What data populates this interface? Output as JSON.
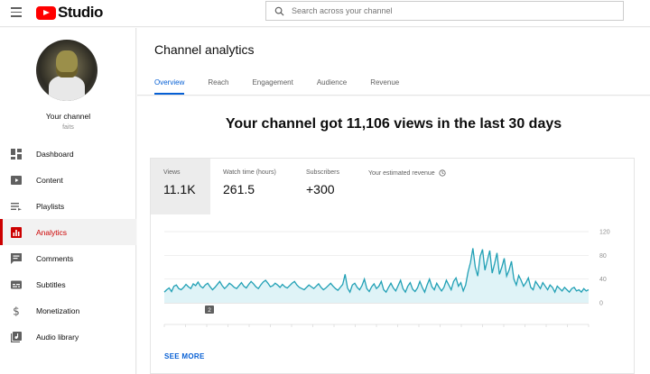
{
  "app": {
    "logo_text": "Studio",
    "colors": {
      "brand": "#ff0000",
      "accent": "#065fd4",
      "active_nav": "#cc0000"
    }
  },
  "search": {
    "placeholder": "Search across your channel"
  },
  "sidebar": {
    "channel_name": "Your channel",
    "channel_handle": "faits",
    "items": [
      {
        "label": "Dashboard",
        "icon": "dashboard-icon"
      },
      {
        "label": "Content",
        "icon": "content-icon"
      },
      {
        "label": "Playlists",
        "icon": "playlists-icon"
      },
      {
        "label": "Analytics",
        "icon": "analytics-icon",
        "active": true
      },
      {
        "label": "Comments",
        "icon": "comments-icon"
      },
      {
        "label": "Subtitles",
        "icon": "subtitles-icon"
      },
      {
        "label": "Monetization",
        "icon": "monetization-icon"
      },
      {
        "label": "Audio library",
        "icon": "audio-library-icon"
      }
    ]
  },
  "header": {
    "title": "Channel analytics",
    "tabs": [
      {
        "label": "Overview",
        "active": true
      },
      {
        "label": "Reach"
      },
      {
        "label": "Engagement"
      },
      {
        "label": "Audience"
      },
      {
        "label": "Revenue"
      }
    ]
  },
  "main": {
    "headline": "Your channel got 11,106 views in the last 30 days",
    "metrics": [
      {
        "label": "Views",
        "value": "11.1K",
        "selected": true
      },
      {
        "label": "Watch time (hours)",
        "value": "261.5"
      },
      {
        "label": "Subscribers",
        "value": "+300"
      },
      {
        "label": "Your estimated revenue",
        "value": "",
        "icon": "clock-icon"
      }
    ],
    "see_more": "SEE MORE",
    "marker_label": "2"
  },
  "chart_data": {
    "type": "area",
    "series": [
      {
        "values": [
          18,
          22,
          25,
          19,
          28,
          30,
          24,
          22,
          26,
          31,
          27,
          24,
          32,
          29,
          35,
          28,
          25,
          30,
          33,
          27,
          22,
          26,
          31,
          36,
          29,
          24,
          28,
          33,
          30,
          26,
          24,
          29,
          34,
          28,
          25,
          31,
          36,
          32,
          27,
          24,
          30,
          35,
          38,
          33,
          27,
          29,
          33,
          30,
          26,
          31,
          27,
          25,
          29,
          33,
          36,
          30,
          26,
          24,
          22,
          26,
          30,
          27,
          24,
          28,
          32,
          26,
          22,
          25,
          29,
          33,
          28,
          24,
          21,
          26,
          31,
          48,
          25,
          18,
          30,
          33,
          26,
          22,
          29,
          40,
          24,
          19,
          27,
          32,
          24,
          28,
          36,
          22,
          18,
          26,
          33,
          25,
          20,
          29,
          38,
          24,
          18,
          28,
          34,
          23,
          19,
          25,
          36,
          26,
          18,
          30,
          40,
          27,
          22,
          33,
          26,
          20,
          26,
          38,
          30,
          22,
          36,
          42,
          28,
          34,
          20,
          30,
          52,
          68,
          92,
          60,
          45,
          78,
          90,
          55,
          72,
          88,
          50,
          66,
          84,
          48,
          60,
          75,
          45,
          55,
          70,
          40,
          30,
          46,
          38,
          28,
          34,
          42,
          26,
          22,
          36,
          30,
          24,
          34,
          28,
          22,
          30,
          26,
          18,
          28,
          24,
          20,
          26,
          22,
          18,
          24,
          26,
          20,
          22,
          18,
          24,
          20,
          22
        ]
      }
    ],
    "ylim": [
      0,
      120
    ],
    "ytick_labels": [
      "120",
      "80",
      "40",
      "0"
    ],
    "grid": true
  }
}
